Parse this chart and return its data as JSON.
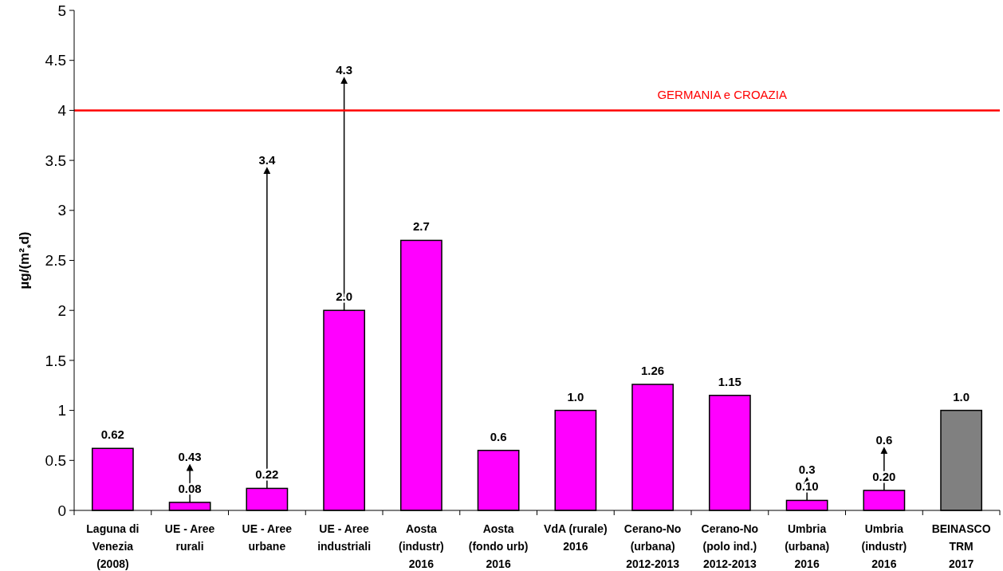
{
  "chart_data": {
    "type": "bar",
    "ylabel": "µg/(m²$_{*}$d)",
    "categories": [
      "Laguna di\nVenezia\n(2008)",
      "UE - Aree\nrurali",
      "UE - Aree\nurbane",
      "UE - Aree\nindustriali",
      "Aosta\n(industr)\n2016",
      "Aosta\n(fondo urb)\n2016",
      "VdA (rurale)\n2016",
      "Cerano-No\n(urbana)\n2012-2013",
      "Cerano-No\n(polo ind.)\n2012-2013",
      "Umbria\n(urbana)\n2016",
      "Umbria\n(industr)\n2016",
      "BEINASCO\nTRM\n2017"
    ],
    "values": [
      0.62,
      0.08,
      0.22,
      2.0,
      2.7,
      0.6,
      1.0,
      1.26,
      1.15,
      0.1,
      0.2,
      1.0
    ],
    "value_labels": [
      "0.62",
      "0.08",
      "0.22",
      "2.0",
      "2.7",
      "0.6",
      "1.0",
      "1.26",
      "1.15",
      "0.10",
      "0.20",
      "1.0"
    ],
    "colors": [
      "#ff00ff",
      "#ff00ff",
      "#ff00ff",
      "#ff00ff",
      "#ff00ff",
      "#ff00ff",
      "#ff00ff",
      "#ff00ff",
      "#ff00ff",
      "#ff00ff",
      "#ff00ff",
      "#808080"
    ],
    "ylim": [
      0,
      5
    ],
    "yticks": [
      0,
      0.5,
      1,
      1.5,
      2,
      2.5,
      3,
      3.5,
      4,
      4.5,
      5
    ],
    "ref_lines": [
      {
        "axis": "y",
        "value": 4,
        "label": "GERMANIA e CROAZIA",
        "color": "#ff0000"
      }
    ],
    "errors": [
      null,
      [
        0.08,
        0.43
      ],
      [
        0.22,
        3.4
      ],
      [
        2.0,
        4.3
      ],
      null,
      null,
      null,
      null,
      null,
      [
        0.1,
        0.3
      ],
      [
        0.2,
        0.6
      ],
      null
    ],
    "annotations": [
      "0.43",
      "3.4",
      "4.3",
      "0.3",
      "0.6"
    ]
  }
}
